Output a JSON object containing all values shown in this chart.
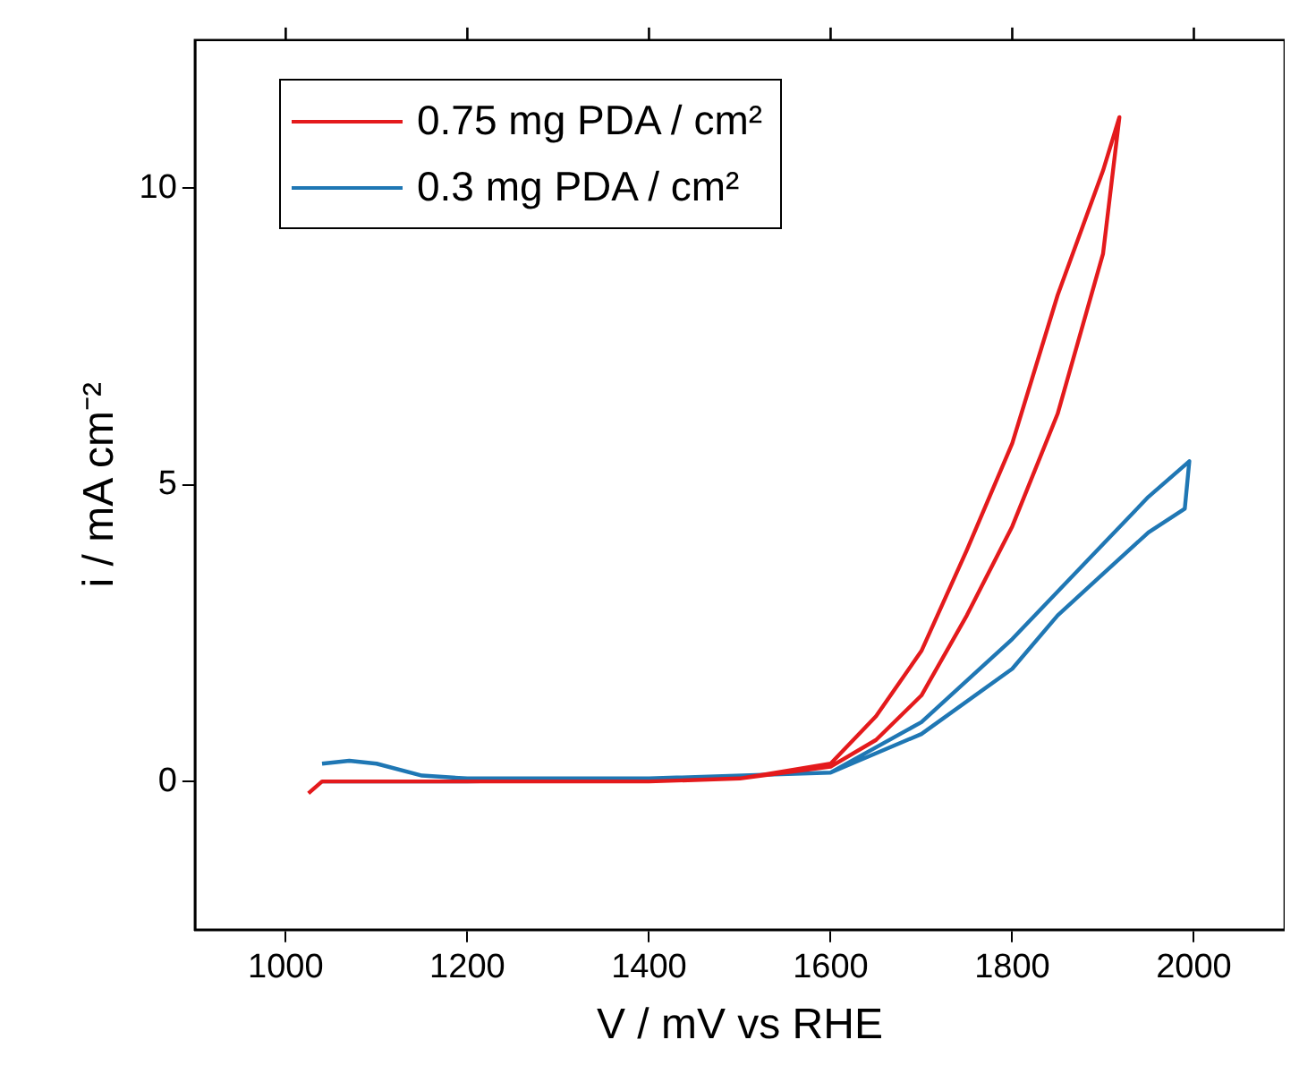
{
  "chart_data": {
    "type": "line",
    "xlabel": "V / mV vs RHE",
    "ylabel": "i / mA cm⁻²",
    "xlim": [
      900,
      2100
    ],
    "xticks": [
      1000,
      1200,
      1400,
      1600,
      1800,
      2000
    ],
    "ylim": [
      -2.5,
      12.5
    ],
    "yticks": [
      0,
      5,
      10
    ],
    "grid": false,
    "legend": "top left",
    "marker": "none",
    "line_style": "solid",
    "series": [
      {
        "name": "0.75 mg PDA / cm²",
        "color": "#e41a1c",
        "x": [
          1025,
          1040,
          1200,
          1400,
          1500,
          1600,
          1650,
          1700,
          1750,
          1800,
          1850,
          1900,
          1918,
          1900,
          1850,
          1800,
          1750,
          1700,
          1650,
          1600,
          1500,
          1400,
          1200,
          1040
        ],
        "values": [
          -0.2,
          0,
          0,
          0,
          0.05,
          0.25,
          0.7,
          1.45,
          2.8,
          4.3,
          6.2,
          8.9,
          11.2,
          10.3,
          8.2,
          5.7,
          3.9,
          2.2,
          1.1,
          0.3,
          0.05,
          0,
          0,
          0
        ]
      },
      {
        "name": "0.3 mg PDA / cm²",
        "color": "#1f77b4",
        "x": [
          1040,
          1070,
          1100,
          1150,
          1200,
          1400,
          1600,
          1700,
          1800,
          1850,
          1900,
          1950,
          1995,
          1990,
          1950,
          1900,
          1850,
          1800,
          1700,
          1600,
          1400,
          1200,
          1040
        ],
        "values": [
          0.3,
          0.35,
          0.3,
          0.1,
          0.05,
          0.05,
          0.15,
          1.0,
          2.4,
          3.2,
          4.0,
          4.8,
          5.4,
          4.6,
          4.2,
          3.5,
          2.8,
          1.9,
          0.8,
          0.15,
          0.05,
          0,
          0
        ]
      }
    ]
  }
}
